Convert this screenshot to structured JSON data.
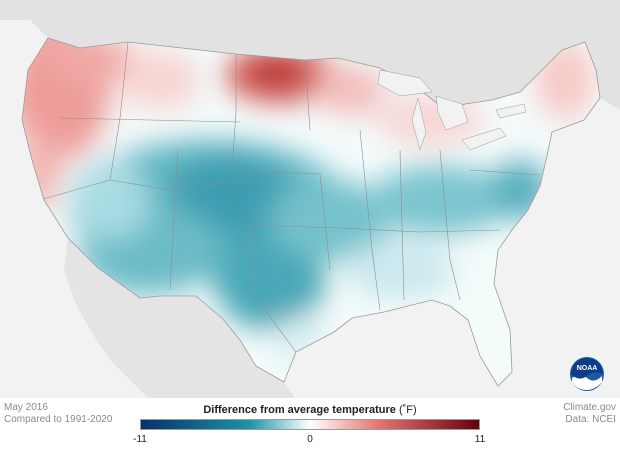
{
  "map": {
    "region": "Contiguous United States",
    "variable": "temperature anomaly",
    "colors": {
      "cold_extreme": "#08306b",
      "cold": "#1a93a8",
      "neutral": "#ffffff",
      "warm": "#e8756f",
      "warm_extreme": "#67000d"
    }
  },
  "footer": {
    "date": "May 2016",
    "baseline": "Compared to 1991-2020",
    "source_site": "Climate.gov",
    "source_data": "Data: NCEI"
  },
  "legend": {
    "title": "Difference from average temperature",
    "unit": "(˚F)",
    "min_label": "-11",
    "mid_label": "0",
    "max_label": "11",
    "min": -11,
    "max": 11
  },
  "logo": {
    "name": "noaa-logo",
    "text": "NOAA"
  }
}
